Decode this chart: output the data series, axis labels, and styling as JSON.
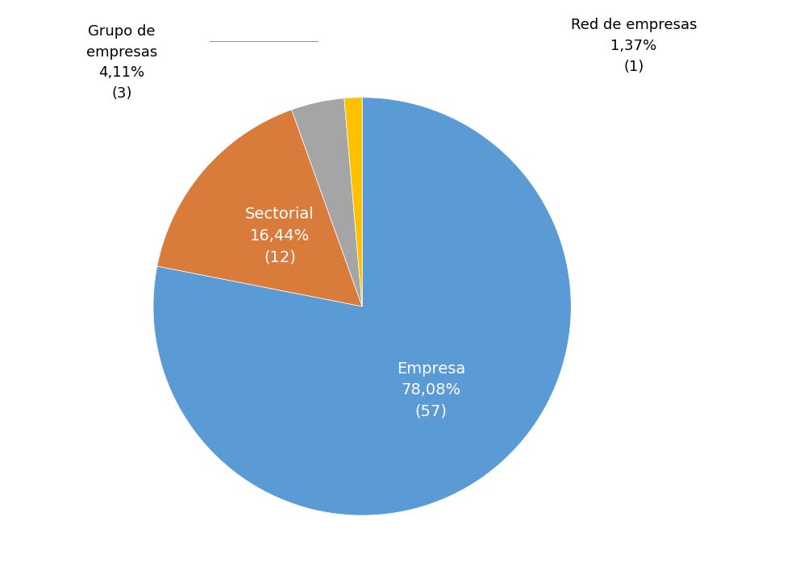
{
  "slices": [
    {
      "label": "Empresa",
      "value": 57,
      "pct": "78,08%",
      "color": "#5b9bd5",
      "text_color": "white"
    },
    {
      "label": "Sectorial",
      "value": 12,
      "pct": "16,44%",
      "color": "#d97b3a",
      "text_color": "white"
    },
    {
      "label": "Grupo de\nempresas",
      "value": 3,
      "pct": "4,11%",
      "color": "#a5a5a5",
      "text_color": "black"
    },
    {
      "label": "Red de empresas",
      "value": 1,
      "pct": "1,37%",
      "color": "#ffc000",
      "text_color": "black"
    }
  ],
  "startangle": 90,
  "background_color": "#ffffff",
  "figsize": [
    9.76,
    7.08
  ],
  "dpi": 100
}
